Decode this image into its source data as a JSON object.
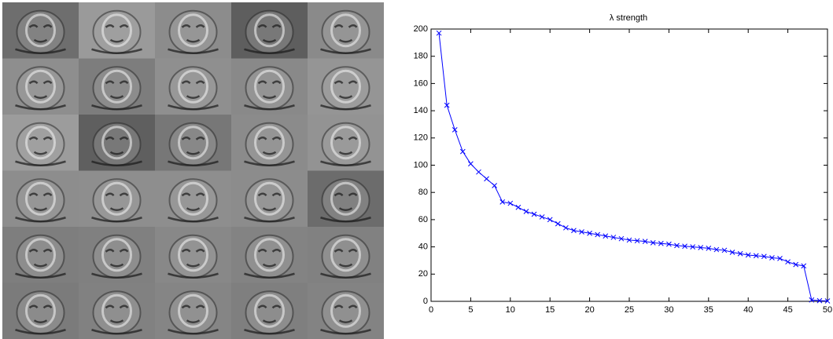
{
  "chart_data": {
    "type": "line",
    "title": "λ strength",
    "x": [
      1,
      2,
      3,
      4,
      5,
      6,
      7,
      8,
      9,
      10,
      11,
      12,
      13,
      14,
      15,
      16,
      17,
      18,
      19,
      20,
      21,
      22,
      23,
      24,
      25,
      26,
      27,
      28,
      29,
      30,
      31,
      32,
      33,
      34,
      35,
      36,
      37,
      38,
      39,
      40,
      41,
      42,
      43,
      44,
      45,
      46,
      47,
      48,
      49,
      50
    ],
    "series": [
      {
        "color": "#0000ff",
        "marker": "x",
        "values": [
          197,
          144,
          126,
          110,
          101,
          95,
          90,
          85,
          73,
          72,
          69,
          66,
          64,
          62,
          60,
          57,
          54,
          52,
          51,
          50,
          49,
          48,
          47,
          46,
          45,
          44.5,
          44,
          43,
          42.5,
          42,
          41,
          40.5,
          40,
          39.5,
          39,
          38,
          37.5,
          36,
          35,
          34,
          33.5,
          33,
          32,
          31.5,
          29,
          27,
          26,
          1,
          0.5,
          0.3
        ]
      }
    ],
    "xlim": [
      0,
      50
    ],
    "xticks": [
      0,
      5,
      10,
      15,
      20,
      25,
      30,
      35,
      40,
      45,
      50
    ],
    "ylim": [
      0,
      200
    ],
    "yticks": [
      0,
      20,
      40,
      60,
      80,
      100,
      120,
      140,
      160,
      180,
      200
    ],
    "grid": false
  }
}
